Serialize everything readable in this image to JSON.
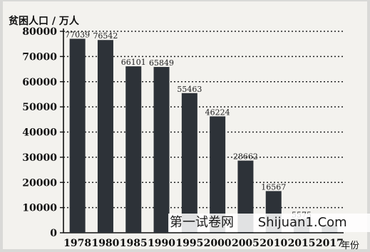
{
  "chart_data": {
    "type": "bar",
    "title": "",
    "ylabel": "贫困人口 / 万人",
    "xlabel": "年份",
    "categories": [
      "1978",
      "1980",
      "1985",
      "1990",
      "1995",
      "2000",
      "2005",
      "2010",
      "2015",
      "2017"
    ],
    "values": [
      77039,
      76542,
      66101,
      65849,
      55463,
      46224,
      28662,
      16567,
      5575,
      3046
    ],
    "data_labels": [
      "77039",
      "76542",
      "66101",
      "65849",
      "55463",
      "46224",
      "28662",
      "16567",
      "5575",
      ""
    ],
    "y_ticks": [
      "0",
      "10000",
      "20000",
      "30000",
      "40000",
      "50000",
      "60000",
      "70000",
      "80000"
    ],
    "ylim": [
      0,
      80000
    ],
    "grid": "horizontal dotted",
    "bar_color": "#2d3238"
  },
  "watermark": {
    "logo_text": "第一试卷网",
    "site_text": "Shijuan1.Com"
  }
}
